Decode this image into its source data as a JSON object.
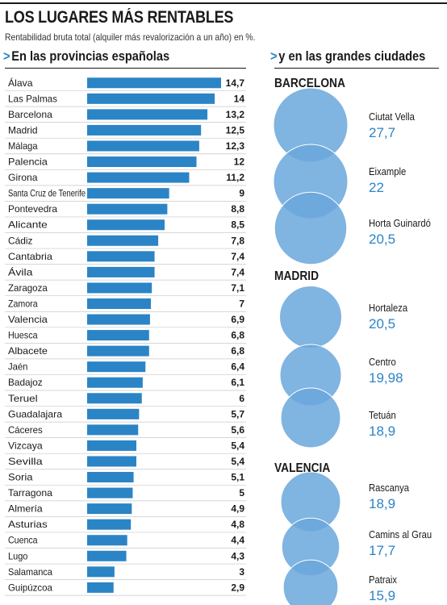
{
  "title": "LOS LUGARES MÁS RENTABLES",
  "subtitle": "Rentabilidad bruta total (alquiler más revalorización a un año) en %.",
  "left_heading": "En las provincias españolas",
  "right_heading": "y en las grandes ciudades",
  "chevron": ">",
  "colors": {
    "bar": "#2b84c6",
    "bubble": "#6aa7dc",
    "accent_text": "#2b84c6"
  },
  "chart_data": [
    {
      "type": "bar",
      "orientation": "horizontal",
      "title": "En las provincias españolas",
      "unit": "%",
      "xlim": [
        0,
        14.7
      ],
      "grid": false,
      "categories": [
        "Álava",
        "Las Palmas",
        "Barcelona",
        "Madrid",
        "Málaga",
        "Palencia",
        "Girona",
        "Santa Cruz de Tenerife",
        "Pontevedra",
        "Alicante",
        "Cádiz",
        "Cantabria",
        "Ávila",
        "Zaragoza",
        "Zamora",
        "Valencia",
        "Huesca",
        "Albacete",
        "Jaén",
        "Badajoz",
        "Teruel",
        "Guadalajara",
        "Cáceres",
        "Vizcaya",
        "Sevilla",
        "Soria",
        "Tarragona",
        "Almería",
        "Asturias",
        "Cuenca",
        "Lugo",
        "Salamanca",
        "Guipúzcoa"
      ],
      "values": [
        14.7,
        14,
        13.2,
        12.5,
        12.3,
        12,
        11.2,
        9,
        8.8,
        8.5,
        7.8,
        7.4,
        7.4,
        7.1,
        7,
        6.9,
        6.8,
        6.8,
        6.4,
        6.1,
        6,
        5.7,
        5.6,
        5.4,
        5.4,
        5.1,
        5,
        4.9,
        4.8,
        4.4,
        4.3,
        3,
        2.9
      ],
      "value_labels": [
        "14,7",
        "14",
        "13,2",
        "12,5",
        "12,3",
        "12",
        "11,2",
        "9",
        "8,8",
        "8,5",
        "7,8",
        "7,4",
        "7,4",
        "7,1",
        "7",
        "6,9",
        "6,8",
        "6,8",
        "6,4",
        "6,1",
        "6",
        "5,7",
        "5,6",
        "5,4",
        "5,4",
        "5,1",
        "5",
        "4,9",
        "4,8",
        "4,4",
        "4,3",
        "3",
        "2,9"
      ]
    },
    {
      "type": "bubble",
      "title": "y en las grandes ciudades",
      "unit": "%",
      "groups": [
        {
          "city": "BARCELONA",
          "districts": [
            {
              "name": "Ciutat Vella",
              "value": 27.7,
              "label": "27,7"
            },
            {
              "name": "Eixample",
              "value": 22,
              "label": "22"
            },
            {
              "name": "Horta Guinardó",
              "value": 20.5,
              "label": "20,5"
            }
          ]
        },
        {
          "city": "MADRID",
          "districts": [
            {
              "name": "Hortaleza",
              "value": 20.5,
              "label": "20,5"
            },
            {
              "name": "Centro",
              "value": 19.98,
              "label": "19,98"
            },
            {
              "name": "Tetuán",
              "value": 18.9,
              "label": "18,9"
            }
          ]
        },
        {
          "city": "VALENCIA",
          "districts": [
            {
              "name": "Rascanya",
              "value": 18.9,
              "label": "18,9"
            },
            {
              "name": "Camins al Grau",
              "value": 17.7,
              "label": "17,7"
            },
            {
              "name": "Patraix",
              "value": 15.9,
              "label": "15,9"
            }
          ]
        }
      ]
    }
  ]
}
